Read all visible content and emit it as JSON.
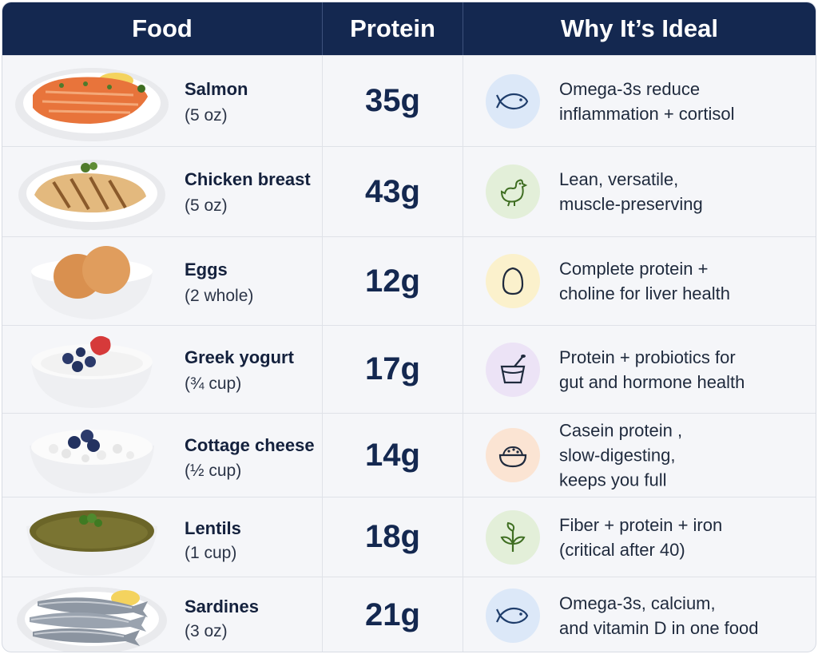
{
  "header": {
    "food": "Food",
    "protein": "Protein",
    "why": "Why It’s Ideal"
  },
  "colors": {
    "header_bg": "#142850",
    "icon_blue": "#dce8f8",
    "icon_green": "#e3efd9",
    "icon_yellow": "#fbf1cc",
    "icon_purple": "#ece3f6",
    "icon_peach": "#fbe4d3"
  },
  "rows": [
    {
      "name": "Salmon",
      "portion": "(5 oz)",
      "protein": "35g",
      "icon": "fish-icon",
      "why": [
        "Omega-3s reduce",
        "inflammation + cortisol"
      ]
    },
    {
      "name": "Chicken breast",
      "portion": "(5 oz)",
      "protein": "43g",
      "icon": "chicken-icon",
      "why": [
        "Lean, versatile,",
        "muscle-preserving"
      ]
    },
    {
      "name": "Eggs",
      "portion": "(2 whole)",
      "protein": "12g",
      "icon": "egg-icon",
      "why": [
        "Complete protein +",
        "choline for liver health"
      ]
    },
    {
      "name": "Greek yogurt",
      "portion": "(¾ cup)",
      "protein": "17g",
      "icon": "yogurt-cup-icon",
      "why": [
        "Protein + probiotics for",
        "gut and hormone health"
      ]
    },
    {
      "name": "Cottage cheese",
      "portion": "(½ cup)",
      "protein": "14g",
      "icon": "cheese-bowl-icon",
      "why": [
        "Casein protein ,",
        "slow-digesting,",
        "keeps you full"
      ]
    },
    {
      "name": "Lentils",
      "portion": "(1 cup)",
      "protein": "18g",
      "icon": "sprout-icon",
      "why": [
        "Fiber + protein + iron",
        "(critical after 40)"
      ]
    },
    {
      "name": "Sardines",
      "portion": "(3 oz)",
      "protein": "21g",
      "icon": "fish-icon",
      "why": [
        "Omega-3s, calcium,",
        "and vitamin D in one food"
      ]
    }
  ]
}
